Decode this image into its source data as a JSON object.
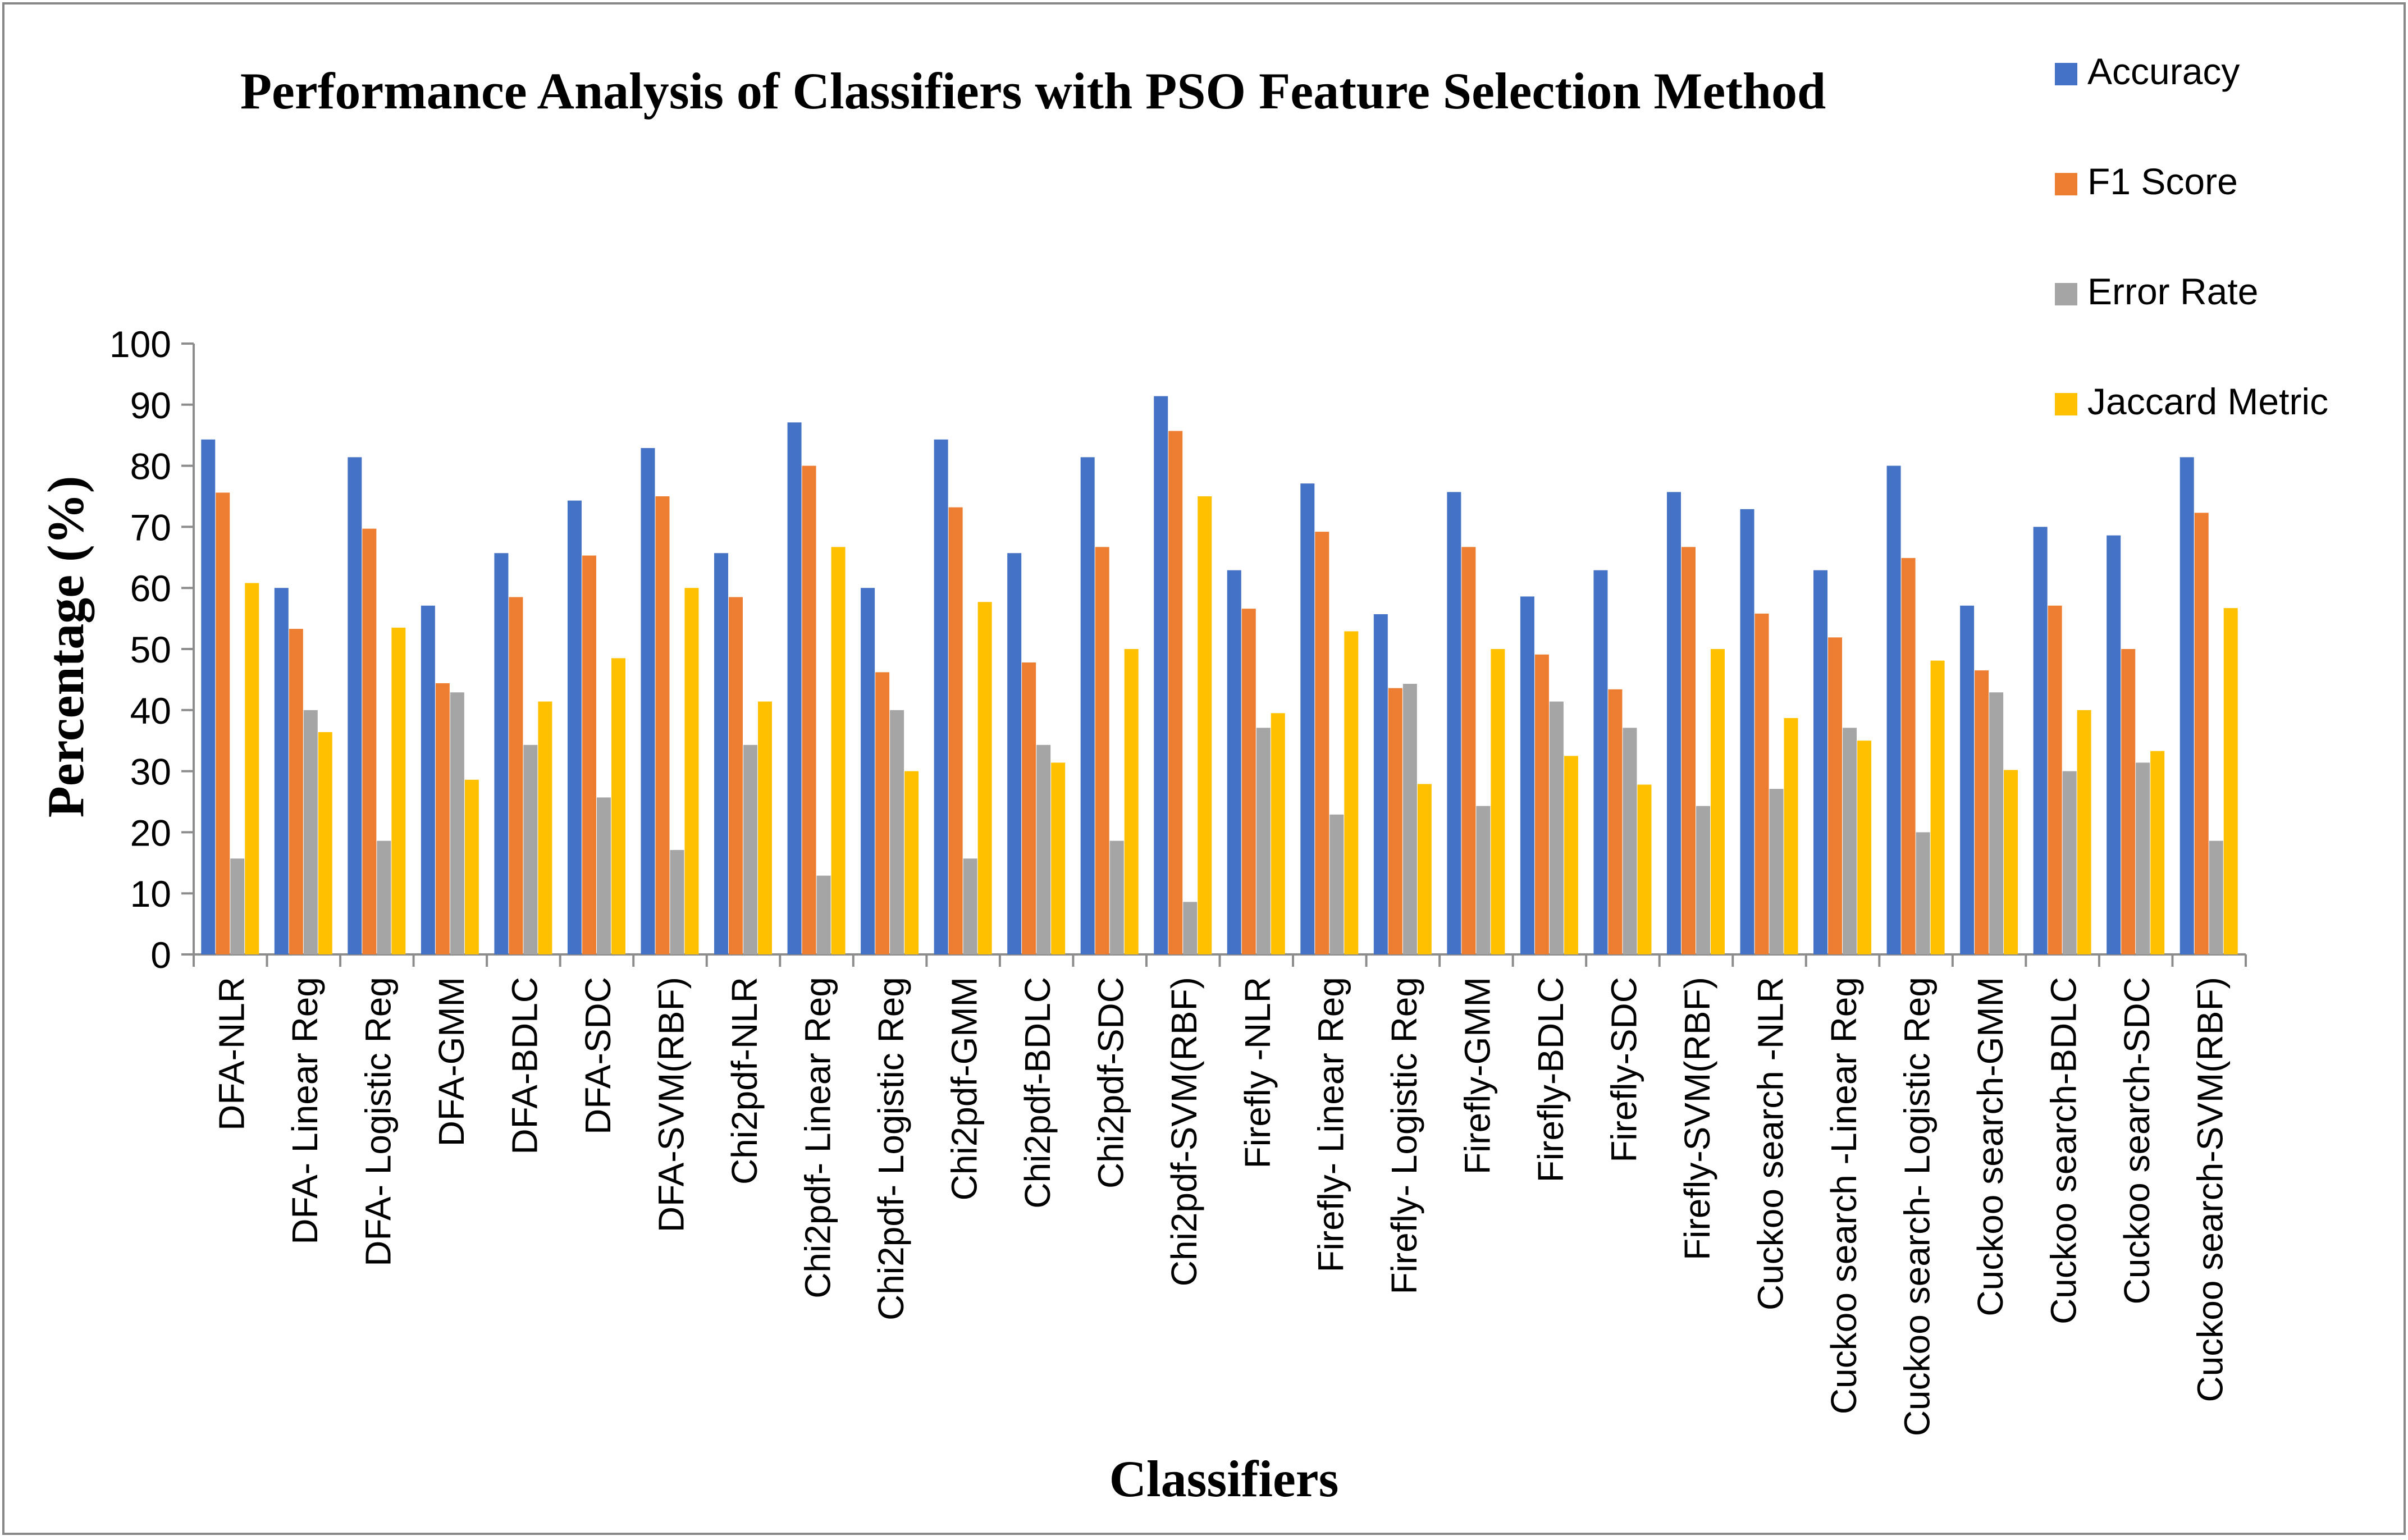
{
  "chart_data": {
    "type": "bar",
    "title": "Performance Analysis of Classifiers with PSO Feature Selection Method",
    "xlabel": "Classifiers",
    "ylabel": "Percentage (%)",
    "ylim": [
      0,
      100
    ],
    "yticks": [
      0,
      10,
      20,
      30,
      40,
      50,
      60,
      70,
      80,
      90,
      100
    ],
    "grid": false,
    "legend_position": "top-right",
    "categories": [
      "DFA-NLR",
      "DFA- Linear Reg",
      "DFA- Logistic Reg",
      "DFA-GMM",
      "DFA-BDLC",
      "DFA-SDC",
      "DFA-SVM(RBF)",
      "Chi2pdf-NLR",
      "Chi2pdf- Linear Reg",
      "Chi2pdf- Logistic Reg",
      "Chi2pdf-GMM",
      "Chi2pdf-BDLC",
      "Chi2pdf-SDC",
      "Chi2pdf-SVM(RBF)",
      "Firefly -NLR",
      "Firefly- Linear Reg",
      "Firefly- Logistic Reg",
      "Firefly-GMM",
      "Firefly-BDLC",
      "Firefly-SDC",
      "Firefly-SVM(RBF)",
      "Cuckoo search -NLR",
      "Cuckoo search -Linear Reg",
      "Cuckoo search- Logistic Reg",
      "Cuckoo search-GMM",
      "Cuckoo search-BDLC",
      "Cuckoo search-SDC",
      "Cuckoo search-SVM(RBF)"
    ],
    "series": [
      {
        "name": "Accuracy",
        "color": "#4472C4",
        "values": [
          84.3,
          60,
          81.4,
          57.1,
          65.7,
          74.3,
          82.9,
          65.7,
          87.1,
          60,
          84.3,
          65.7,
          81.4,
          91.4,
          62.9,
          77.1,
          55.7,
          75.7,
          58.6,
          62.9,
          75.7,
          72.9,
          62.9,
          80,
          57.1,
          70,
          68.6,
          81.4
        ]
      },
      {
        "name": "F1 Score",
        "color": "#ED7D31",
        "values": [
          75.6,
          53.3,
          69.7,
          44.4,
          58.5,
          65.3,
          75,
          58.5,
          80,
          46.2,
          73.2,
          47.8,
          66.7,
          85.7,
          56.6,
          69.2,
          43.6,
          66.7,
          49.1,
          43.4,
          66.7,
          55.8,
          51.9,
          64.9,
          46.5,
          57.1,
          50,
          72.3
        ]
      },
      {
        "name": "Error Rate",
        "color": "#A5A5A5",
        "values": [
          15.7,
          40,
          18.6,
          42.9,
          34.3,
          25.7,
          17.1,
          34.3,
          12.9,
          40,
          15.7,
          34.3,
          18.6,
          8.6,
          37.1,
          22.9,
          44.3,
          24.3,
          41.4,
          37.1,
          24.3,
          27.1,
          37.1,
          20,
          42.9,
          30,
          31.4,
          18.6
        ]
      },
      {
        "name": "Jaccard Metric",
        "color": "#FFC000",
        "values": [
          60.8,
          36.4,
          53.5,
          28.6,
          41.4,
          48.5,
          60,
          41.4,
          66.7,
          30,
          57.7,
          31.4,
          50,
          75,
          39.5,
          52.9,
          27.9,
          50,
          32.5,
          27.8,
          50,
          38.7,
          35,
          48.1,
          30.2,
          40,
          33.3,
          56.7
        ]
      }
    ]
  }
}
